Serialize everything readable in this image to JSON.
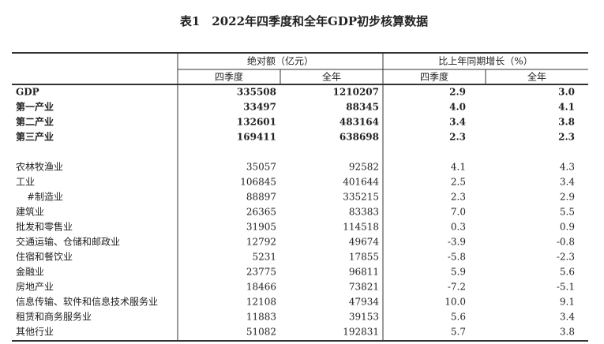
{
  "title": "表1　2022年四季度和全年GDP初步核算数据",
  "header": {
    "group_absolute": "绝对额（亿元）",
    "group_growth": "比上年同期增长（%）",
    "columns": [
      "四季度",
      "全年",
      "四季度",
      "全年"
    ]
  },
  "main_rows": [
    [
      "GDP",
      "335508",
      "1210207",
      "2.9",
      "3.0"
    ],
    [
      "第一产业",
      "33497",
      "88345",
      "4.0",
      "4.1"
    ],
    [
      "第二产业",
      "132601",
      "483164",
      "3.4",
      "3.8"
    ],
    [
      "第三产业",
      "169411",
      "638698",
      "2.3",
      "2.3"
    ]
  ],
  "industry_rows": [
    [
      "农林牧渔业",
      "35057",
      "92582",
      "4.1",
      "4.3"
    ],
    [
      "工业",
      "106845",
      "401644",
      "2.5",
      "3.4"
    ],
    [
      "#制造业",
      "88897",
      "335215",
      "2.3",
      "2.9"
    ],
    [
      "建筑业",
      "26365",
      "83383",
      "7.0",
      "5.5"
    ],
    [
      "批发和零售业",
      "31905",
      "114518",
      "0.3",
      "0.9"
    ],
    [
      "交通运输、仓储和邮政业",
      "12792",
      "49674",
      "-3.9",
      "-0.8"
    ],
    [
      "住宿和餐饮业",
      "5231",
      "17855",
      "-5.8",
      "-2.3"
    ],
    [
      "金融业",
      "23775",
      "96811",
      "5.9",
      "5.6"
    ],
    [
      "房地产业",
      "18466",
      "73821",
      "-7.2",
      "-5.1"
    ],
    [
      "信息传输、软件和信息技术服务业",
      "12108",
      "47934",
      "10.0",
      "9.1"
    ],
    [
      "租赁和商务服务业",
      "11883",
      "39153",
      "5.6",
      "3.4"
    ],
    [
      "其他行业",
      "51082",
      "192831",
      "5.7",
      "3.8"
    ]
  ]
}
